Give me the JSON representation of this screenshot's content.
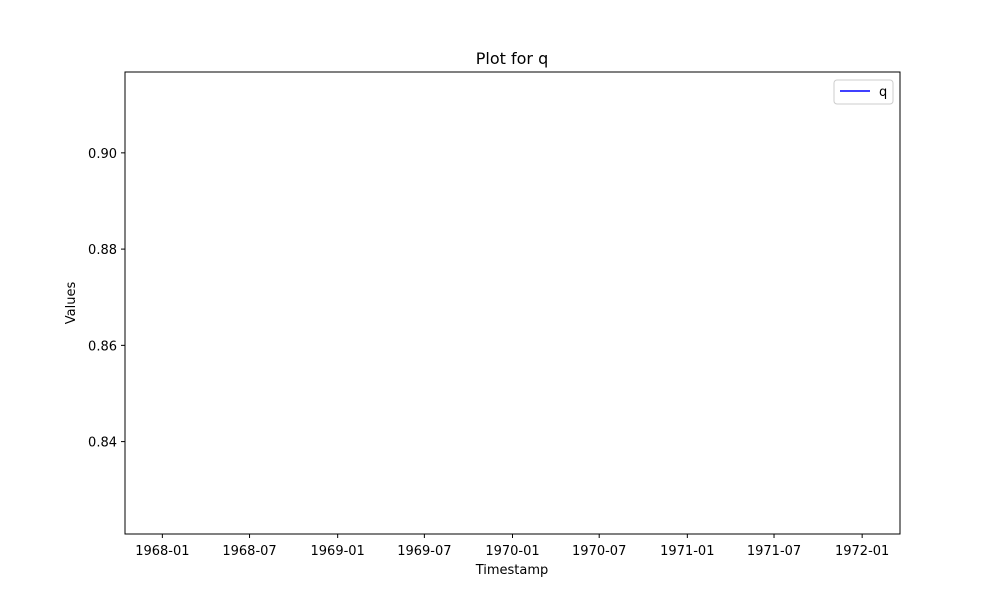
{
  "chart_data": {
    "type": "line",
    "title": "Plot for q",
    "xlabel": "Timestamp",
    "ylabel": "Values",
    "x_tick_labels": [
      "1968-01",
      "1968-07",
      "1969-01",
      "1969-07",
      "1970-01",
      "1970-07",
      "1971-01",
      "1971-07",
      "1972-01"
    ],
    "x_tick_dates": [
      "1968-01-01",
      "1968-07-01",
      "1969-01-01",
      "1969-07-01",
      "1970-01-01",
      "1970-07-01",
      "1971-01-01",
      "1971-07-01",
      "1972-01-01"
    ],
    "xlim": [
      "1967-10-15",
      "1972-03-20"
    ],
    "y_tick_labels": [
      "0.84",
      "0.86",
      "0.88",
      "0.90"
    ],
    "y_ticks": [
      0.84,
      0.86,
      0.88,
      0.9
    ],
    "ylim": [
      0.8208,
      0.9168
    ],
    "series": [
      {
        "name": "q",
        "color": "#0000ff",
        "x": [],
        "values": []
      }
    ],
    "legend": {
      "position": "upper right"
    },
    "grid": false
  }
}
